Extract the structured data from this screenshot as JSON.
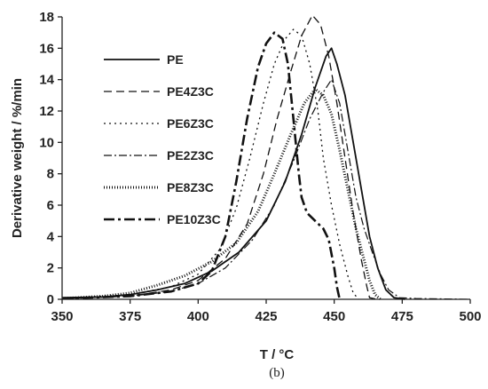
{
  "chart_data": {
    "type": "line",
    "xlabel": "T / °C",
    "ylabel": "Derivative weight / %/min",
    "caption": "(b)",
    "xlim": [
      350,
      500
    ],
    "ylim": [
      0,
      18
    ],
    "xticks": [
      350,
      375,
      400,
      425,
      450,
      475,
      500
    ],
    "yticks": [
      0,
      2,
      4,
      6,
      8,
      10,
      12,
      14,
      16,
      18
    ],
    "grid": false,
    "legend_position": "top-left",
    "series": [
      {
        "name": "PE",
        "dash": "solid",
        "width": 1.8,
        "points": [
          [
            350,
            0.1
          ],
          [
            365,
            0.15
          ],
          [
            375,
            0.3
          ],
          [
            385,
            0.6
          ],
          [
            395,
            1.0
          ],
          [
            405,
            1.8
          ],
          [
            415,
            3.0
          ],
          [
            425,
            5.0
          ],
          [
            432,
            7.5
          ],
          [
            438,
            10.5
          ],
          [
            443,
            13.5
          ],
          [
            447,
            15.5
          ],
          [
            449,
            16.0
          ],
          [
            451,
            15.0
          ],
          [
            454,
            13.0
          ],
          [
            457,
            10.0
          ],
          [
            460,
            7.0
          ],
          [
            463,
            4.0
          ],
          [
            466,
            2.0
          ],
          [
            469,
            0.6
          ],
          [
            472,
            0.1
          ],
          [
            476,
            0.0
          ]
        ]
      },
      {
        "name": "PE4Z3C",
        "dash": "9,5",
        "width": 1.3,
        "points": [
          [
            350,
            0.05
          ],
          [
            375,
            0.2
          ],
          [
            390,
            0.6
          ],
          [
            400,
            1.2
          ],
          [
            410,
            2.6
          ],
          [
            418,
            4.8
          ],
          [
            424,
            8.0
          ],
          [
            429,
            11.5
          ],
          [
            434,
            14.5
          ],
          [
            438,
            16.8
          ],
          [
            442,
            18.1
          ],
          [
            445,
            17.5
          ],
          [
            448,
            15.5
          ],
          [
            451,
            12.5
          ],
          [
            454,
            9.0
          ],
          [
            457,
            5.5
          ],
          [
            460,
            2.5
          ],
          [
            462,
            0.8
          ],
          [
            463,
            0.1
          ],
          [
            466,
            0.0
          ]
        ]
      },
      {
        "name": "PE6Z3C",
        "dash": "2,4",
        "width": 1.3,
        "points": [
          [
            350,
            0.05
          ],
          [
            375,
            0.3
          ],
          [
            390,
            0.8
          ],
          [
            400,
            1.6
          ],
          [
            408,
            3.2
          ],
          [
            414,
            5.8
          ],
          [
            419,
            9.0
          ],
          [
            424,
            12.5
          ],
          [
            428,
            15.0
          ],
          [
            432,
            16.6
          ],
          [
            435,
            17.2
          ],
          [
            438,
            16.8
          ],
          [
            441,
            15.0
          ],
          [
            444,
            12.0
          ],
          [
            446,
            9.0
          ],
          [
            449,
            6.0
          ],
          [
            452,
            3.5
          ],
          [
            455,
            1.5
          ],
          [
            457,
            0.4
          ],
          [
            459,
            0.0
          ]
        ]
      },
      {
        "name": "PE2Z3C",
        "dash": "9,3,2,3",
        "width": 1.2,
        "points": [
          [
            350,
            0.05
          ],
          [
            375,
            0.2
          ],
          [
            390,
            0.5
          ],
          [
            400,
            1.0
          ],
          [
            410,
            2.0
          ],
          [
            420,
            3.8
          ],
          [
            428,
            6.0
          ],
          [
            435,
            8.8
          ],
          [
            441,
            11.5
          ],
          [
            446,
            13.2
          ],
          [
            449,
            14.0
          ],
          [
            452,
            12.5
          ],
          [
            455,
            9.5
          ],
          [
            458,
            6.5
          ],
          [
            461,
            4.5
          ],
          [
            464,
            3.0
          ],
          [
            467,
            1.6
          ],
          [
            470,
            0.6
          ],
          [
            474,
            0.1
          ],
          [
            480,
            0.05
          ],
          [
            500,
            0.0
          ]
        ]
      },
      {
        "name": "PE8Z3C",
        "dash": "1,2",
        "width": 3.0,
        "points": [
          [
            350,
            0.05
          ],
          [
            365,
            0.2
          ],
          [
            375,
            0.4
          ],
          [
            385,
            0.9
          ],
          [
            395,
            1.5
          ],
          [
            405,
            2.4
          ],
          [
            414,
            3.6
          ],
          [
            422,
            5.6
          ],
          [
            428,
            8.0
          ],
          [
            434,
            10.5
          ],
          [
            439,
            12.5
          ],
          [
            443,
            13.4
          ],
          [
            446,
            13.0
          ],
          [
            449,
            11.8
          ],
          [
            452,
            9.5
          ],
          [
            455,
            7.0
          ],
          [
            458,
            4.5
          ],
          [
            461,
            2.5
          ],
          [
            463,
            1.2
          ],
          [
            465,
            0.3
          ],
          [
            467,
            0.0
          ]
        ]
      },
      {
        "name": "PE10Z3C",
        "dash": "12,4,3,4",
        "width": 2.6,
        "points": [
          [
            350,
            0.05
          ],
          [
            375,
            0.2
          ],
          [
            390,
            0.5
          ],
          [
            400,
            1.0
          ],
          [
            405,
            1.8
          ],
          [
            410,
            4.0
          ],
          [
            414,
            7.5
          ],
          [
            418,
            11.5
          ],
          [
            422,
            14.8
          ],
          [
            425,
            16.3
          ],
          [
            428,
            17.0
          ],
          [
            431,
            16.6
          ],
          [
            433,
            15.0
          ],
          [
            435,
            11.5
          ],
          [
            437,
            8.0
          ],
          [
            438,
            6.5
          ],
          [
            440,
            5.5
          ],
          [
            443,
            5.0
          ],
          [
            446,
            4.5
          ],
          [
            448,
            3.8
          ],
          [
            450,
            2.0
          ],
          [
            451,
            0.8
          ],
          [
            452,
            0.0
          ]
        ]
      }
    ]
  }
}
